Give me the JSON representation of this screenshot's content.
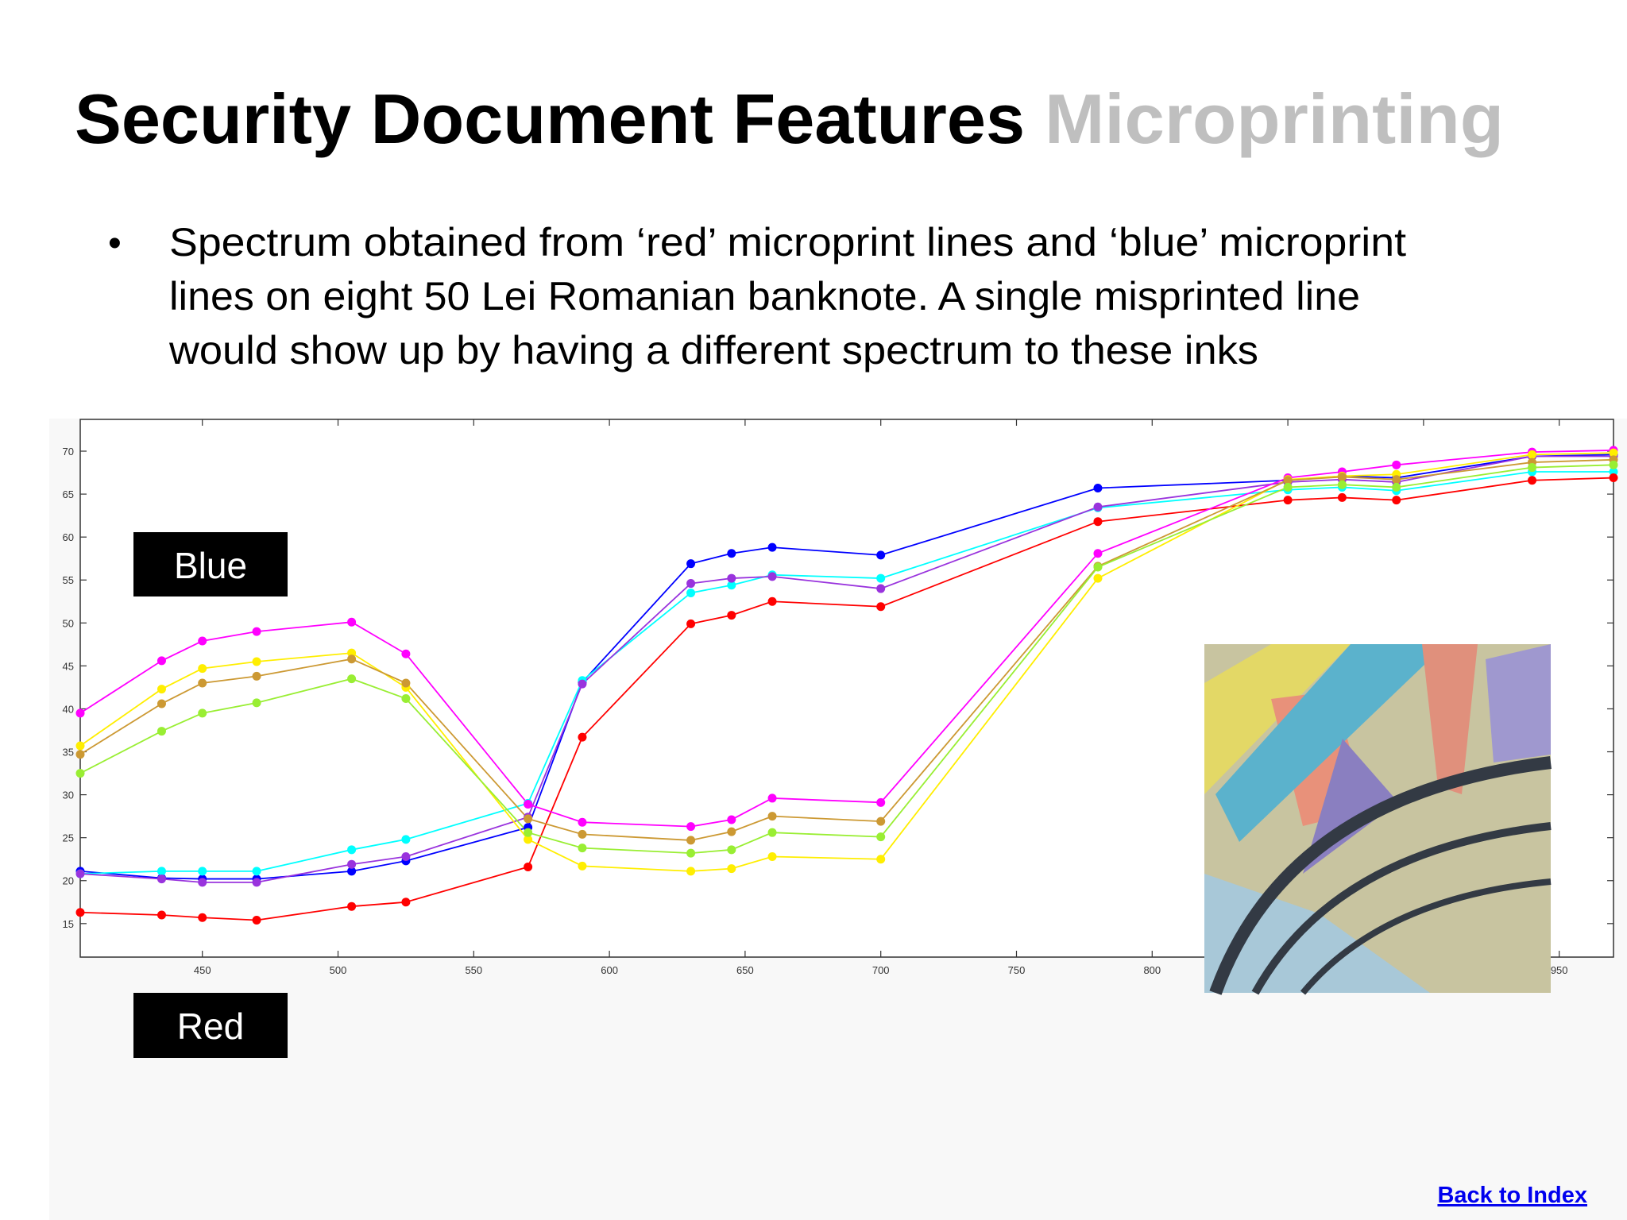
{
  "slide": {
    "title": "Security Document Features",
    "subtitle": "Microprinting",
    "bullet_lines": [
      "Spectrum obtained from ‘red’ microprint lines and ‘blue’ microprint",
      "lines on eight 50 Lei Romanian banknote. A single misprinted line",
      "would show up by having a different spectrum to these inks"
    ],
    "labels": [
      "Blue",
      "Red"
    ],
    "link": "Back to Index"
  },
  "chart_data": {
    "type": "line",
    "x": [
      405,
      435,
      450,
      470,
      505,
      525,
      570,
      590,
      630,
      645,
      660,
      700,
      780,
      850,
      870,
      890,
      940,
      970
    ],
    "xlim": [
      405,
      970
    ],
    "ylim": [
      11.1,
      73.7
    ],
    "xticks": [
      450,
      500,
      550,
      600,
      650,
      700,
      750,
      800,
      850,
      900,
      950
    ],
    "yticks": [
      15,
      20,
      25,
      30,
      35,
      40,
      45,
      50,
      55,
      60,
      65,
      70
    ],
    "series": [
      {
        "color": "#0000ff",
        "values": [
          21.1,
          20.3,
          20.2,
          20.2,
          21.1,
          22.3,
          26.2,
          43.1,
          56.9,
          58.1,
          58.8,
          57.9,
          65.7,
          66.6,
          67.1,
          66.9,
          69.4,
          69.6
        ]
      },
      {
        "color": "#00ffff",
        "values": [
          20.8,
          21.1,
          21.1,
          21.1,
          23.6,
          24.8,
          29.0,
          43.3,
          53.5,
          54.4,
          55.6,
          55.2,
          63.4,
          65.5,
          65.8,
          65.4,
          67.6,
          67.6
        ]
      },
      {
        "color": "#9933dd",
        "values": [
          20.8,
          20.2,
          19.8,
          19.8,
          21.9,
          22.8,
          27.4,
          42.9,
          54.6,
          55.2,
          55.4,
          54.0,
          63.5,
          66.4,
          66.7,
          66.4,
          69.4,
          69.4
        ]
      },
      {
        "color": "#ff0000",
        "values": [
          16.3,
          16.0,
          15.7,
          15.4,
          17.0,
          17.5,
          21.6,
          36.7,
          49.9,
          50.9,
          52.5,
          51.9,
          61.8,
          64.3,
          64.6,
          64.3,
          66.6,
          66.9
        ]
      },
      {
        "color": "#ff00ff",
        "values": [
          39.5,
          45.6,
          47.9,
          49.0,
          50.1,
          46.4,
          28.9,
          26.8,
          26.3,
          27.1,
          29.6,
          29.1,
          58.1,
          66.9,
          67.6,
          68.4,
          69.9,
          70.1
        ]
      },
      {
        "color": "#ffee00",
        "values": [
          35.7,
          42.3,
          44.7,
          45.5,
          46.5,
          42.5,
          24.8,
          21.7,
          21.1,
          21.4,
          22.8,
          22.5,
          55.2,
          66.7,
          67.1,
          67.3,
          69.6,
          69.8
        ]
      },
      {
        "color": "#cc9933",
        "values": [
          34.7,
          40.6,
          43.0,
          43.8,
          45.8,
          43.0,
          27.2,
          25.4,
          24.7,
          25.7,
          27.5,
          26.9,
          56.6,
          66.6,
          67.0,
          66.7,
          68.7,
          69.0
        ]
      },
      {
        "color": "#99ee33",
        "values": [
          32.5,
          37.4,
          39.5,
          40.7,
          43.5,
          41.2,
          25.6,
          23.8,
          23.2,
          23.6,
          25.6,
          25.1,
          56.5,
          65.8,
          66.1,
          65.8,
          68.1,
          68.4
        ]
      }
    ]
  }
}
